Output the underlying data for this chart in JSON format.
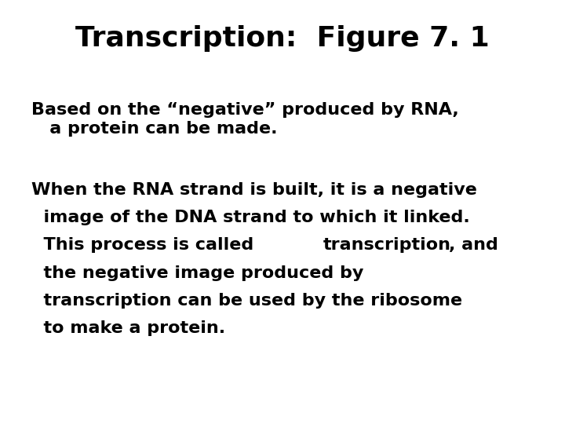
{
  "title": "Transcription:  Figure 7. 1",
  "title_fontsize": 26,
  "title_color": "#000000",
  "background_color": "#ffffff",
  "paragraph1_line1": "Based on the “negative” produced by RNA,",
  "paragraph1_line2": "   a protein can be made.",
  "paragraph2_line1": "When the RNA strand is built, it is a negative",
  "paragraph2_line2": "  image of the DNA strand to which it linked.",
  "paragraph2_line3_pre": "  This process is called ",
  "paragraph2_bold": "transcription",
  "paragraph2_line3_post": ", and",
  "paragraph2_line4": "  the negative image produced by",
  "paragraph2_line5": "  transcription can be used by the ribosome",
  "paragraph2_line6": "  to make a protein.",
  "title_fontsize_val": 26,
  "body_fontsize": 16,
  "body_color": "#000000",
  "body_fontweight": "bold",
  "title_fontweight": "bold",
  "font_family": "Arial"
}
